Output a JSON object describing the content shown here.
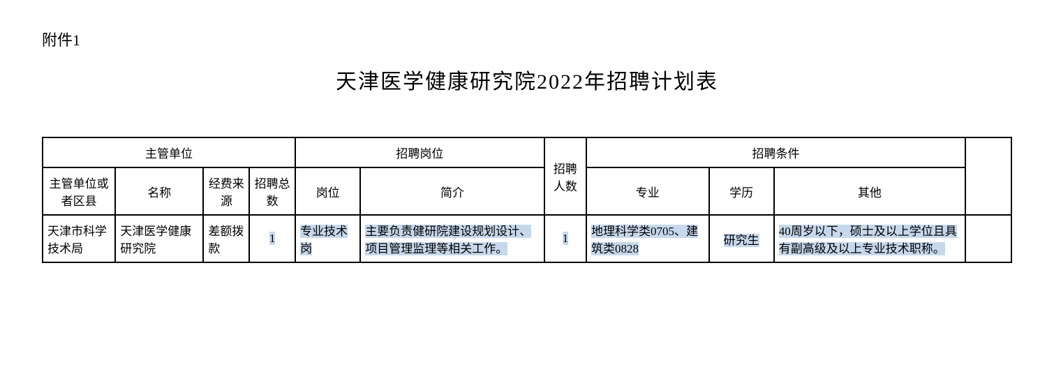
{
  "attachment": "附件1",
  "title": "天津医学健康研究院2022年招聘计划表",
  "headers": {
    "group1": "主管单位",
    "group2": "招聘岗位",
    "group3": "招聘人数",
    "group4": "招聘条件",
    "sub1": "主管单位或者区县",
    "sub2": "名称",
    "sub3": "经费来源",
    "sub4": "招聘总数",
    "sub5": "岗位",
    "sub6": "简介",
    "sub7": "专业",
    "sub8": "学历",
    "sub9": "其他"
  },
  "row": {
    "dept": "天津市科学技术局",
    "name": "天津医学健康研究院",
    "funding": "差额拨款",
    "total": "1",
    "position": "专业技术岗",
    "desc": "主要负责健研院建设规划设计、项目管理监理等相关工作。",
    "count": "1",
    "major": "地理科学类0705、建筑类0828",
    "education": "研究生",
    "other": "40周岁以下，硕士及以上学位且具有副高级及以上专业技术职称。"
  },
  "style": {
    "highlight_color": "#c7d8ec",
    "border_color": "#000000",
    "bg_color": "#ffffff",
    "title_fontsize": 30,
    "cell_fontsize": 17,
    "label_fontsize": 22
  }
}
